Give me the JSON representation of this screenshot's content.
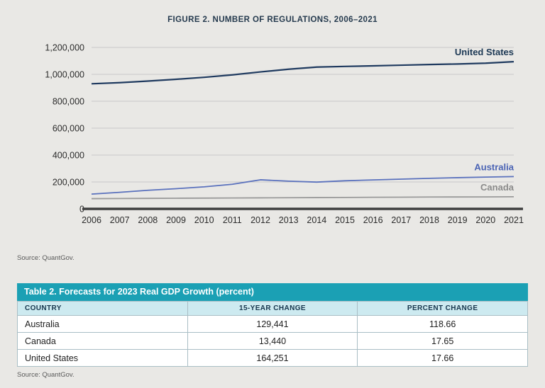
{
  "figure": {
    "title": "FIGURE 2. NUMBER OF REGULATIONS, 2006–2021",
    "source": "Source: QuantGov."
  },
  "chart_data": {
    "type": "line",
    "title": "FIGURE 2. NUMBER OF REGULATIONS, 2006–2021",
    "xlabel": "",
    "ylabel": "",
    "x": [
      2006,
      2007,
      2008,
      2009,
      2010,
      2011,
      2012,
      2013,
      2014,
      2015,
      2016,
      2017,
      2018,
      2019,
      2020,
      2021
    ],
    "ylim": [
      0,
      1200000
    ],
    "yticks": [
      0,
      200000,
      400000,
      600000,
      800000,
      1000000,
      1200000
    ],
    "grid": true,
    "legend_position": "end-of-line labels",
    "series": [
      {
        "name": "United States",
        "color": "#1f3a5f",
        "label_color": "#1c3854",
        "width": 2.2,
        "values": [
          930000,
          938000,
          950000,
          963000,
          978000,
          996000,
          1018000,
          1038000,
          1054000,
          1059000,
          1063000,
          1068000,
          1073000,
          1077000,
          1083000,
          1094000
        ]
      },
      {
        "name": "Australia",
        "color": "#5a71bd",
        "label_color": "#4a63b4",
        "width": 1.8,
        "values": [
          110000,
          123000,
          138000,
          150000,
          164000,
          183000,
          216000,
          206000,
          199000,
          209000,
          215000,
          221000,
          227000,
          232000,
          236000,
          240000
        ]
      },
      {
        "name": "Canada",
        "color": "#9a9a9a",
        "label_color": "#8a8a8a",
        "width": 1.8,
        "values": [
          76000,
          77000,
          78000,
          79000,
          80000,
          81000,
          82000,
          83000,
          84000,
          85000,
          86000,
          87000,
          88000,
          88500,
          89000,
          90000
        ]
      }
    ]
  },
  "table": {
    "title": "Table 2. Forecasts for 2023 Real GDP Growth (percent)",
    "headers": [
      "COUNTRY",
      "15-YEAR CHANGE",
      "PERCENT CHANGE"
    ],
    "rows": [
      [
        "Australia",
        "129,441",
        "118.66"
      ],
      [
        "Canada",
        "13,440",
        "17.65"
      ],
      [
        "United States",
        "164,251",
        "17.66"
      ]
    ],
    "source": "Source: QuantGov."
  }
}
